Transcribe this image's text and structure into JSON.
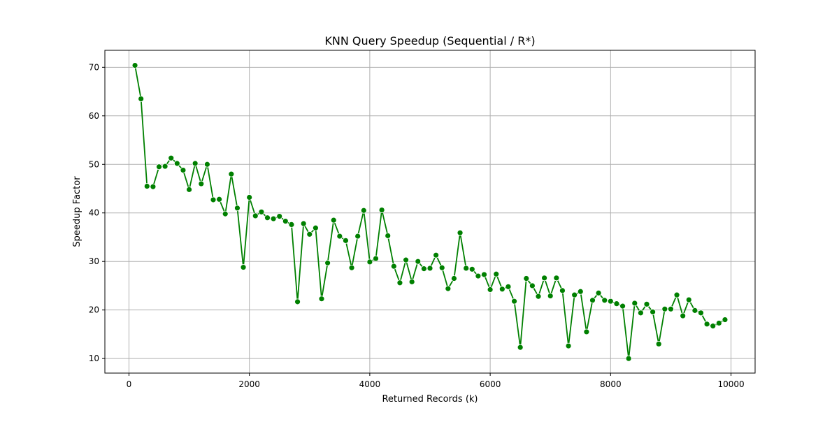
{
  "chart_data": {
    "type": "line",
    "title": "KNN Query Speedup (Sequential / R*)",
    "xlabel": "Returned Records (k)",
    "ylabel": "Speedup Factor",
    "xlim": [
      -400,
      10400
    ],
    "ylim": [
      7,
      73.5
    ],
    "xticks": [
      0,
      2000,
      4000,
      6000,
      8000,
      10000
    ],
    "yticks": [
      10,
      20,
      30,
      40,
      50,
      60,
      70
    ],
    "grid": true,
    "series": [
      {
        "color": "#008000",
        "marker": "circle",
        "x": [
          100,
          200,
          300,
          400,
          500,
          600,
          700,
          800,
          900,
          1000,
          1100,
          1200,
          1300,
          1400,
          1500,
          1600,
          1700,
          1800,
          1900,
          2000,
          2100,
          2200,
          2300,
          2400,
          2500,
          2600,
          2700,
          2800,
          2900,
          3000,
          3100,
          3200,
          3300,
          3400,
          3500,
          3600,
          3700,
          3800,
          3900,
          4000,
          4100,
          4200,
          4300,
          4400,
          4500,
          4600,
          4700,
          4800,
          4900,
          5000,
          5100,
          5200,
          5300,
          5400,
          5500,
          5600,
          5700,
          5800,
          5900,
          6000,
          6100,
          6200,
          6300,
          6400,
          6500,
          6600,
          6700,
          6800,
          6900,
          7000,
          7100,
          7200,
          7300,
          7400,
          7500,
          7600,
          7700,
          7800,
          7900,
          8000,
          8100,
          8200,
          8300,
          8400,
          8500,
          8600,
          8700,
          8800,
          8900,
          9000,
          9100,
          9200,
          9300,
          9400,
          9500,
          9600,
          9700,
          9800,
          9900
        ],
        "y": [
          70.4,
          63.5,
          45.5,
          45.4,
          49.5,
          49.6,
          51.3,
          50.2,
          48.8,
          44.8,
          50.2,
          46.0,
          50.0,
          42.7,
          42.8,
          39.8,
          48.0,
          41.0,
          28.8,
          43.2,
          39.4,
          40.2,
          39.0,
          38.8,
          39.3,
          38.3,
          37.6,
          21.7,
          37.8,
          35.6,
          36.9,
          22.3,
          29.7,
          38.5,
          35.2,
          34.3,
          28.7,
          35.2,
          40.5,
          29.9,
          30.6,
          40.6,
          35.3,
          29.0,
          25.6,
          30.3,
          25.8,
          30.0,
          28.5,
          28.6,
          31.3,
          28.7,
          24.4,
          26.5,
          35.9,
          28.6,
          28.4,
          27.0,
          27.3,
          24.2,
          27.4,
          24.3,
          24.8,
          21.8,
          12.3,
          26.5,
          25.0,
          22.8,
          26.6,
          22.9,
          26.6,
          24.0,
          12.6,
          23.1,
          23.8,
          15.5,
          22.0,
          23.5,
          22.0,
          21.8,
          21.3,
          20.8,
          10.0,
          21.4,
          19.4,
          21.2,
          19.6,
          13.0,
          20.2,
          20.2,
          23.1,
          18.8,
          22.1,
          19.9,
          19.4,
          17.1,
          16.7,
          17.3,
          18.0
        ]
      }
    ]
  }
}
